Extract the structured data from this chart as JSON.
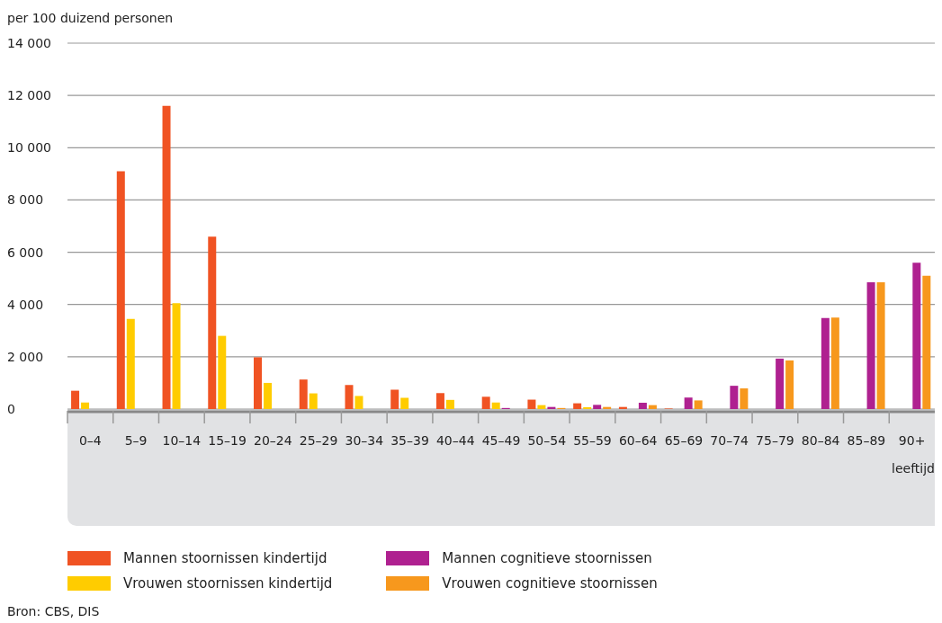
{
  "chart_data": {
    "type": "bar",
    "ylabel": "per 100 duizend personen",
    "xlabel": "leeftijd",
    "categories": [
      "0–4",
      "5–9",
      "10–14",
      "15–19",
      "20–24",
      "25–29",
      "30–34",
      "35–39",
      "40–44",
      "45–49",
      "50–54",
      "55–59",
      "60–64",
      "65–69",
      "70–74",
      "75–79",
      "80–84",
      "85–89",
      "90+"
    ],
    "series": [
      {
        "name": "Mannen stoornissen kindertijd",
        "color": "#f05323",
        "values": [
          700,
          9100,
          11600,
          6600,
          1980,
          1130,
          920,
          740,
          610,
          470,
          360,
          220,
          80,
          20,
          null,
          null,
          null,
          null,
          null
        ]
      },
      {
        "name": "Vrouwen stoornissen kindertijd",
        "color": "#ffcc00",
        "values": [
          250,
          3450,
          4050,
          2800,
          1000,
          600,
          500,
          430,
          350,
          250,
          150,
          70,
          null,
          null,
          null,
          null,
          null,
          null,
          null
        ]
      },
      {
        "name": "Mannen cognitieve stoornissen",
        "color": "#af2190",
        "values": [
          null,
          null,
          null,
          null,
          null,
          null,
          null,
          null,
          null,
          40,
          80,
          160,
          240,
          440,
          890,
          1930,
          3480,
          4850,
          5600
        ]
      },
      {
        "name": "Vrouwen cognitieve stoornissen",
        "color": "#f7981d",
        "values": [
          null,
          null,
          null,
          null,
          null,
          null,
          null,
          null,
          null,
          null,
          40,
          80,
          150,
          330,
          790,
          1860,
          3500,
          4850,
          5100
        ]
      }
    ],
    "ylim": [
      0,
      14000
    ],
    "yticks": [
      {
        "value": 0,
        "label": "0"
      },
      {
        "value": 2000,
        "label": "2 000"
      },
      {
        "value": 4000,
        "label": "4 000"
      },
      {
        "value": 6000,
        "label": "6 000"
      },
      {
        "value": 8000,
        "label": "8 000"
      },
      {
        "value": 10000,
        "label": "10 000"
      },
      {
        "value": 12000,
        "label": "12 000"
      },
      {
        "value": 14000,
        "label": "14 000"
      }
    ],
    "grid": "y",
    "legend": "bottom",
    "annotations": [
      "Bron: CBS, DIS"
    ]
  }
}
